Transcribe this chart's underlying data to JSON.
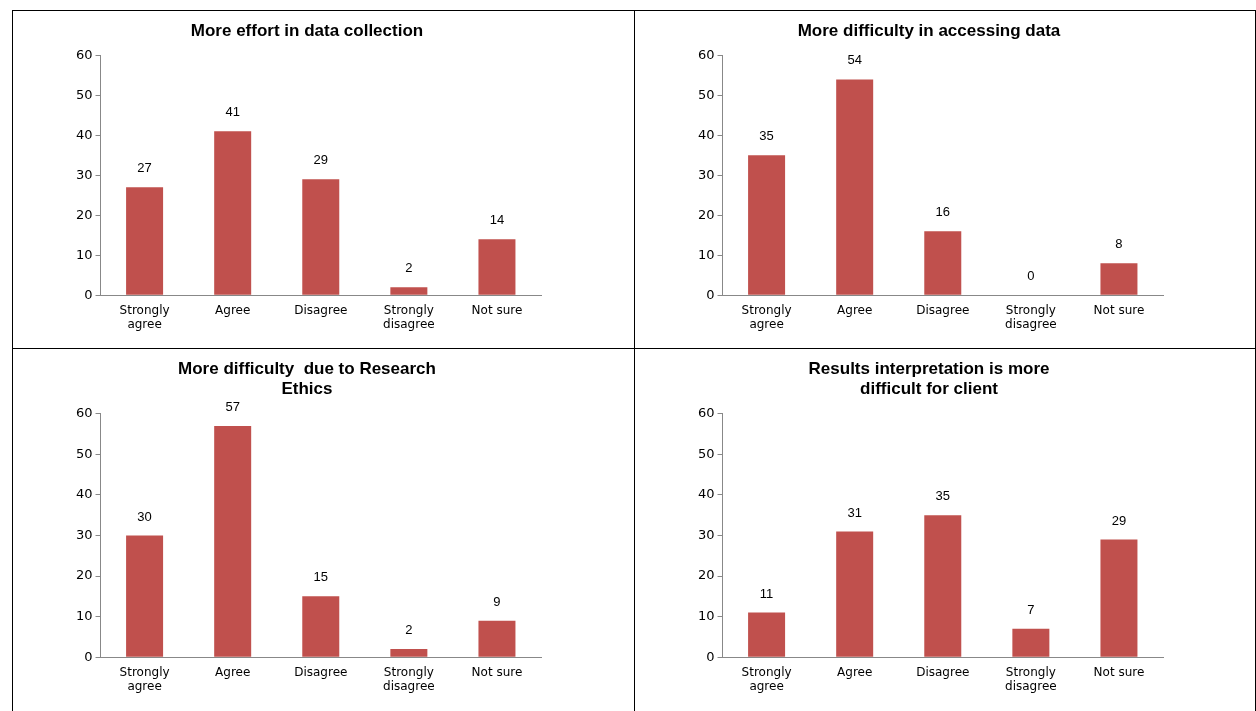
{
  "chart_data": [
    {
      "type": "bar",
      "title": "More effort in data collection",
      "categories": [
        "Strongly agree",
        "Agree",
        "Disagree",
        "Strongly disagree",
        "Not sure"
      ],
      "values": [
        27,
        41,
        29,
        2,
        14
      ],
      "color": "#c0504d",
      "ylim": [
        0,
        60
      ],
      "yticks": [
        0,
        10,
        20,
        30,
        40,
        50,
        60
      ],
      "grid": false,
      "data_labels": true
    },
    {
      "type": "bar",
      "title": "More difficulty in accessing data",
      "categories": [
        "Strongly agree",
        "Agree",
        "Disagree",
        "Strongly disagree",
        "Not sure"
      ],
      "values": [
        35,
        54,
        16,
        0,
        8
      ],
      "color": "#c0504d",
      "ylim": [
        0,
        60
      ],
      "yticks": [
        0,
        10,
        20,
        30,
        40,
        50,
        60
      ],
      "grid": false,
      "data_labels": true
    },
    {
      "type": "bar",
      "title": "More difficulty  due to Research Ethics",
      "categories": [
        "Strongly agree",
        "Agree",
        "Disagree",
        "Strongly disagree",
        "Not sure"
      ],
      "values": [
        30,
        57,
        15,
        2,
        9
      ],
      "color": "#c0504d",
      "ylim": [
        0,
        60
      ],
      "yticks": [
        0,
        10,
        20,
        30,
        40,
        50,
        60
      ],
      "grid": false,
      "data_labels": true
    },
    {
      "type": "bar",
      "title": "Results interpretation is more difficult for client",
      "categories": [
        "Strongly agree",
        "Agree",
        "Disagree",
        "Strongly disagree",
        "Not sure"
      ],
      "values": [
        11,
        31,
        35,
        7,
        29
      ],
      "color": "#c0504d",
      "ylim": [
        0,
        60
      ],
      "yticks": [
        0,
        10,
        20,
        30,
        40,
        50,
        60
      ],
      "grid": false,
      "data_labels": true
    }
  ]
}
